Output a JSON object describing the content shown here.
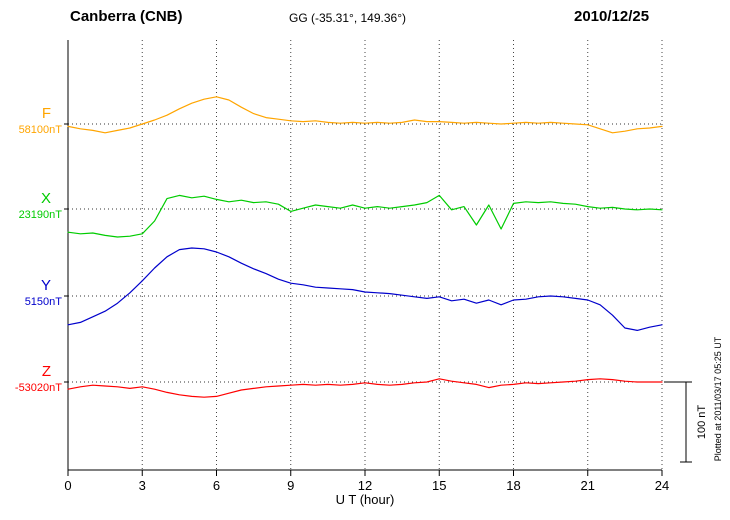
{
  "header": {
    "station": "Canberra (CNB)",
    "coords": "GG (-35.31°, 149.36°)",
    "date": "2010/12/25"
  },
  "axis": {
    "x_label": "U T (hour)",
    "x_ticks": [
      "0",
      "3",
      "6",
      "9",
      "12",
      "15",
      "18",
      "21",
      "24"
    ]
  },
  "scale_bar": {
    "label": "100 nT",
    "nT": 100
  },
  "footer_note": "Plotted at 2011/03/17 05:25 UT",
  "chart_data": {
    "type": "line",
    "title": "Canberra (CNB) magnetogram",
    "xlabel": "U T (hour)",
    "x_range": [
      0,
      24
    ],
    "x_step_hours": 0.5,
    "grid": "dotted",
    "scale_nT_per_div": 100,
    "series": [
      {
        "name": "F",
        "base_label": "58100nT",
        "base_value": 58100,
        "color": "#ffa500",
        "offsets_nT": [
          -3,
          -6,
          -8,
          -11,
          -8,
          -5,
          0,
          5,
          11,
          19,
          26,
          31,
          34,
          30,
          21,
          13,
          8,
          6,
          4,
          3,
          4,
          2,
          1,
          2,
          1,
          2,
          1,
          2,
          5,
          3,
          3,
          2,
          1,
          2,
          1,
          0,
          1,
          2,
          1,
          2,
          1,
          0,
          -1,
          -6,
          -11,
          -9,
          -6,
          -5,
          -3
        ]
      },
      {
        "name": "X",
        "base_label": "23190nT",
        "base_value": 23190,
        "color": "#00cc00",
        "offsets_nT": [
          -29,
          -31,
          -30,
          -33,
          -35,
          -34,
          -31,
          -15,
          13,
          17,
          14,
          16,
          12,
          9,
          11,
          8,
          9,
          6,
          -3,
          1,
          5,
          3,
          1,
          5,
          1,
          3,
          1,
          3,
          5,
          8,
          17,
          -1,
          3,
          -20,
          5,
          -25,
          7,
          9,
          8,
          9,
          7,
          6,
          3,
          1,
          2,
          0,
          -1,
          0,
          -1
        ]
      },
      {
        "name": "Y",
        "base_label": "5150nT",
        "base_value": 5150,
        "color": "#0000cc",
        "offsets_nT": [
          -36,
          -33,
          -26,
          -19,
          -9,
          4,
          19,
          35,
          49,
          58,
          60,
          59,
          55,
          49,
          41,
          34,
          28,
          21,
          16,
          14,
          11,
          10,
          9,
          8,
          5,
          4,
          3,
          1,
          -1,
          -3,
          -1,
          -6,
          -4,
          -9,
          -5,
          -11,
          -5,
          -4,
          -1,
          0,
          -1,
          -3,
          -5,
          -11,
          -24,
          -40,
          -43,
          -39,
          -36
        ]
      },
      {
        "name": "Z",
        "base_label": "-53020nT",
        "base_value": -53020,
        "color": "#ff0000",
        "offsets_nT": [
          -9,
          -6,
          -4,
          -5,
          -6,
          -8,
          -6,
          -9,
          -13,
          -16,
          -18,
          -19,
          -18,
          -14,
          -10,
          -8,
          -6,
          -5,
          -4,
          -3,
          -4,
          -3,
          -4,
          -3,
          -1,
          -3,
          -4,
          -3,
          -1,
          0,
          4,
          1,
          -1,
          -3,
          -7,
          -4,
          -3,
          -1,
          -2,
          -1,
          0,
          1,
          3,
          4,
          3,
          1,
          0,
          0,
          0
        ]
      }
    ]
  }
}
